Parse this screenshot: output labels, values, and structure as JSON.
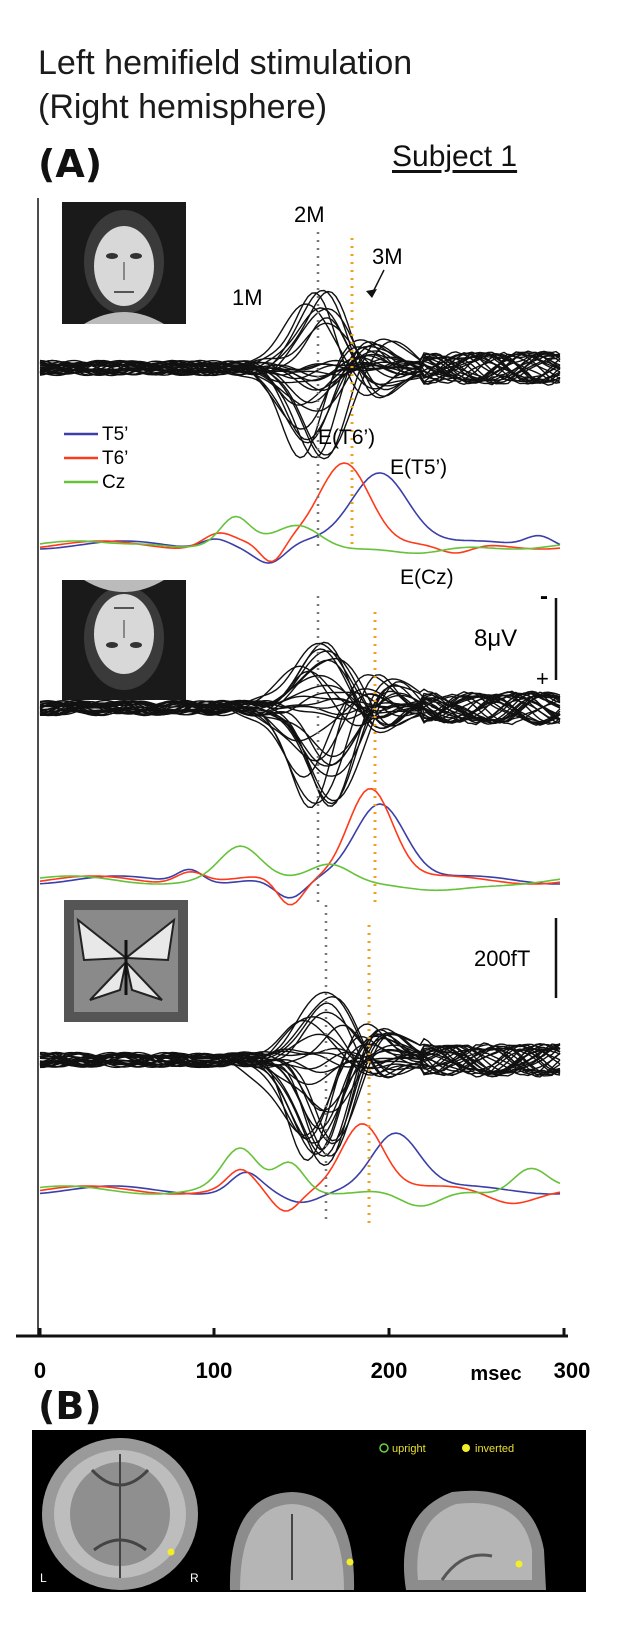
{
  "title_line1": "Left hemifield stimulation",
  "title_line2": "(Right hemisphere)",
  "panel_a": "(A)",
  "panel_b": "(B)",
  "subject": "Subject 1",
  "peaks": {
    "p1": "1M",
    "p2": "2M",
    "p3": "3M"
  },
  "eeg_labels": {
    "t6": "E(T6’)",
    "t5": "E(T5’)",
    "cz": "E(Cz)"
  },
  "legend": [
    {
      "name": "T5’",
      "color": "#3b3fa8"
    },
    {
      "name": "T6’",
      "color": "#ff3a1a"
    },
    {
      "name": "Cz",
      "color": "#66c23a"
    }
  ],
  "scale_eeg": {
    "minus": "-",
    "value": "8μV",
    "plus": "+"
  },
  "scale_meg": "200fT",
  "x_axis": {
    "ticks": [
      "0",
      "100",
      "200",
      "300"
    ],
    "unit": "msec"
  },
  "stimuli": [
    "face-upright",
    "face-inverted",
    "butterfly"
  ],
  "mri": {
    "upright_label": "upright",
    "inverted_label": "inverted",
    "left": "L",
    "right": "R"
  },
  "colors": {
    "black_trace": "#111111",
    "gray_marker": "#777777",
    "orange_marker": "#f0a020",
    "dot": "#f2ee2a"
  }
}
